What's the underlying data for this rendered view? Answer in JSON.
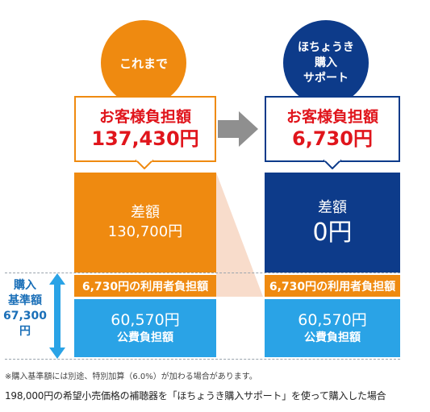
{
  "left": {
    "circle_label": "これまで",
    "callout_line1": "お客様負担額",
    "callout_line2": "137,430円",
    "diff_label": "差額",
    "diff_value": "130,700円",
    "user_share": "6,730円の利用者負担額",
    "public_value": "60,570円",
    "public_label": "公費負担額"
  },
  "right": {
    "circle_line1": "ほちょうき",
    "circle_line2": "購入",
    "circle_line3": "サポート",
    "callout_line1": "お客様負担額",
    "callout_line2": "6,730円",
    "diff_label": "差額",
    "diff_value": "0円",
    "user_share": "6,730円の利用者負担額",
    "public_value": "60,570円",
    "public_label": "公費負担額"
  },
  "side_label": {
    "line1": "購入",
    "line2": "基準額",
    "line3": "67,300",
    "line4": "円"
  },
  "footnote": "※購入基準額には別途、特別加算（6.0%）が加わる場合があります。",
  "caption": "198,000円の希望小売価格の補聴器を「ほちょうき購入サポート」を使って購入した場合",
  "colors": {
    "orange": "#ef8a10",
    "navy": "#0d3b8a",
    "light_blue": "#2aa3e6",
    "red": "#e0151c",
    "gray_arrow": "#8f8f8f",
    "peach": "#f8dccb"
  }
}
